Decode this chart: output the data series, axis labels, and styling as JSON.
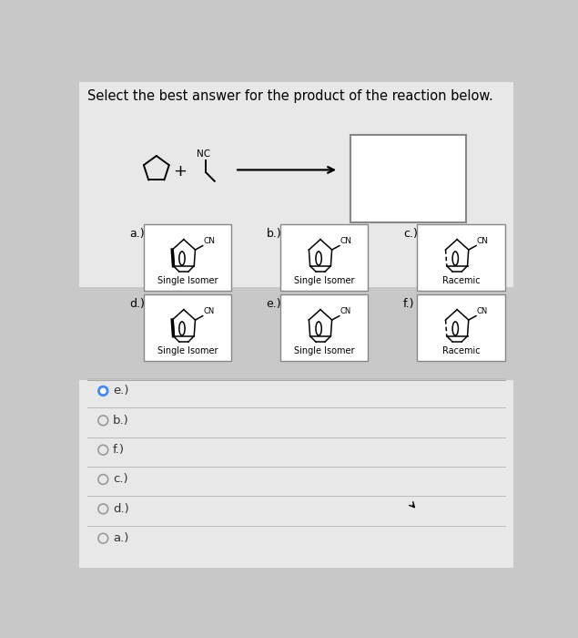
{
  "title": "Select the best answer for the product of the reaction below.",
  "bg_color": "#c8c8c8",
  "panel_bg": "#d0d0d0",
  "white": "#ffffff",
  "box_edge": "#999999",
  "answer_selected": "e.)",
  "answer_choices": [
    "e.)",
    "b.)",
    "f.)",
    "c.)",
    "d.)",
    "a.)"
  ],
  "choice_labels": [
    "a.)",
    "b.)",
    "c.)",
    "d.)",
    "e.)",
    "f.)"
  ],
  "choice_subtitles": [
    "Single Isomer",
    "Single Isomer",
    "Racemic",
    "Single Isomer",
    "Single Isomer",
    "Racemic"
  ],
  "mol_variants": [
    "a",
    "b",
    "c",
    "d",
    "e",
    "f"
  ]
}
